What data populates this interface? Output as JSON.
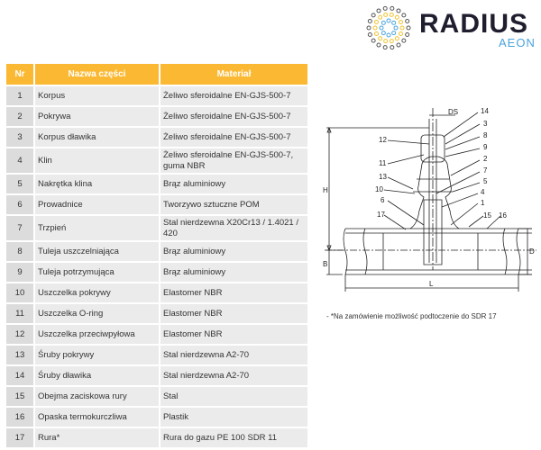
{
  "brand": {
    "name": "RADIUS",
    "sub": "AEON",
    "colors": {
      "yellow": "#fbb933",
      "blue": "#4aa3dc",
      "dark": "#1e1e2e"
    }
  },
  "table": {
    "headers": [
      "Nr",
      "Nazwa części",
      "Materiał"
    ],
    "rows": [
      [
        "1",
        "Korpus",
        "Żeliwo sferoidalne EN-GJS-500-7"
      ],
      [
        "2",
        "Pokrywa",
        "Żeliwo sferoidalne EN-GJS-500-7"
      ],
      [
        "3",
        "Korpus dławika",
        "Żeliwo sferoidalne EN-GJS-500-7"
      ],
      [
        "4",
        "Klin",
        "Żeliwo sferoidalne EN-GJS-500-7, guma NBR"
      ],
      [
        "5",
        "Nakrętka klina",
        "Brąz aluminiowy"
      ],
      [
        "6",
        "Prowadnice",
        "Tworzywo sztuczne POM"
      ],
      [
        "7",
        "Trzpień",
        "Stal nierdzewna X20Cr13 / 1.4021 / 420"
      ],
      [
        "8",
        "Tuleja uszczelniająca",
        "Brąz aluminiowy"
      ],
      [
        "9",
        "Tuleja potrzymująca",
        "Brąz aluminiowy"
      ],
      [
        "10",
        "Uszczelka pokrywy",
        "Elastomer NBR"
      ],
      [
        "11",
        "Uszczelka O-ring",
        "Elastomer NBR"
      ],
      [
        "12",
        "Uszczelka przeciwpyłowa",
        "Elastomer NBR"
      ],
      [
        "13",
        "Śruby pokrywy",
        "Stal nierdzewna A2-70"
      ],
      [
        "14",
        "Śruby dławika",
        "Stal nierdzewna A2-70"
      ],
      [
        "15",
        "Obejma zaciskowa rury",
        "Stal"
      ],
      [
        "16",
        "Opaska termokurczliwa",
        "Plastik"
      ],
      [
        "17",
        "Rura*",
        "Rura do gazu PE 100 SDR 11"
      ]
    ]
  },
  "drawing": {
    "labels": {
      "l14": "14",
      "l3": "3",
      "l8": "8",
      "l9": "9",
      "l2": "2",
      "l7": "7",
      "l5": "5",
      "l4": "4",
      "l1": "1",
      "l15": "15",
      "l16": "16",
      "l12": "12",
      "l11": "11",
      "l13": "13",
      "l10": "10",
      "l6": "6",
      "l17": "17"
    },
    "dims": {
      "ds": "DS",
      "h": "H",
      "b": "B",
      "d": "D",
      "l": "L"
    }
  },
  "note": "- *Na zamówienie możliwość podtoczenie do SDR 17"
}
